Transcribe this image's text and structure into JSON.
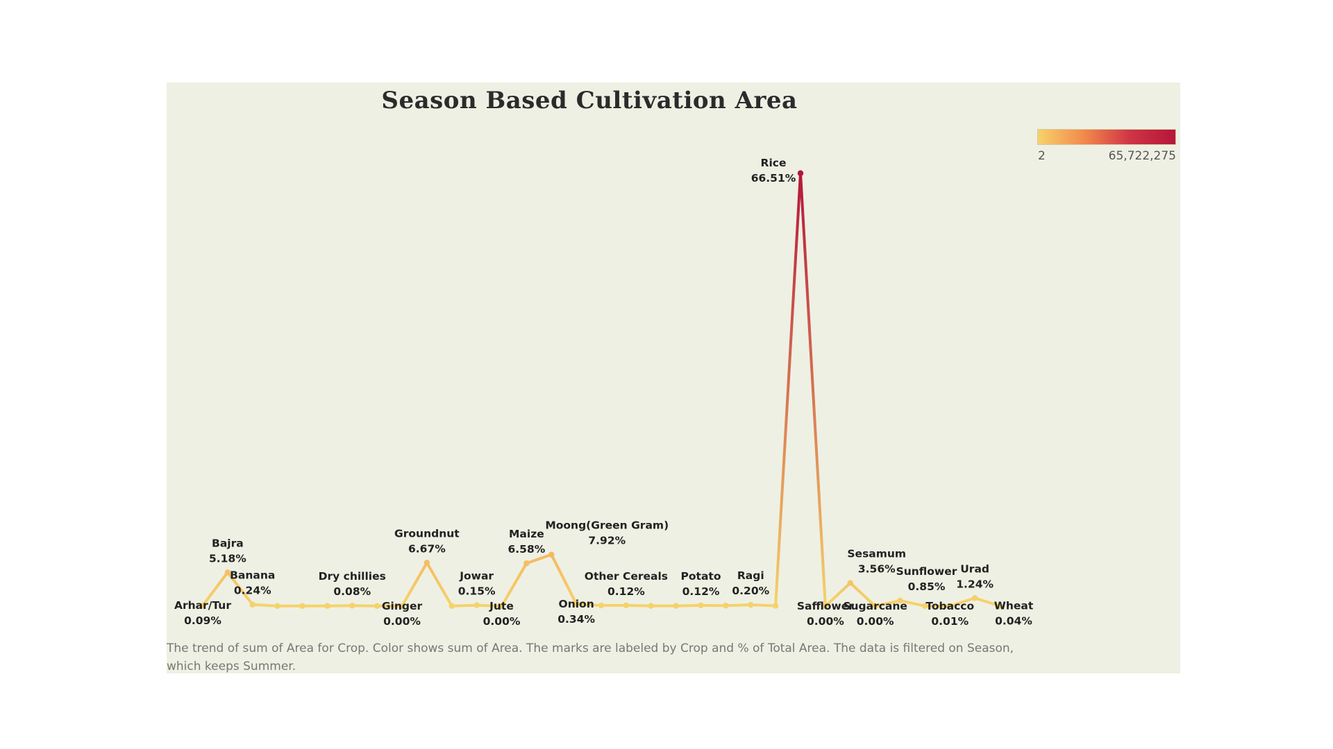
{
  "chart_data": {
    "type": "line",
    "title": "Season Based Cultivation Area",
    "color_legend": {
      "min_label": "2",
      "max_label": "65,722,275",
      "colors": [
        "#f6d26b",
        "#f28a4c",
        "#cf3546",
        "#b5163a"
      ]
    },
    "ylim": [
      0,
      70
    ],
    "points": [
      {
        "crop": "Arhar/Tur",
        "pct": 0.09,
        "pct_label": "0.09%",
        "show_label": true,
        "label_pos": "below"
      },
      {
        "crop": "Bajra",
        "pct": 5.18,
        "pct_label": "5.18%",
        "show_label": true,
        "label_pos": "above"
      },
      {
        "crop": "Banana",
        "pct": 0.24,
        "pct_label": "0.24%",
        "show_label": true,
        "label_pos": "above"
      },
      {
        "crop": "",
        "pct": 0.02,
        "pct_label": "",
        "show_label": false,
        "label_pos": "none"
      },
      {
        "crop": "",
        "pct": 0.02,
        "pct_label": "",
        "show_label": false,
        "label_pos": "none"
      },
      {
        "crop": "",
        "pct": 0.03,
        "pct_label": "",
        "show_label": false,
        "label_pos": "none"
      },
      {
        "crop": "Dry chillies",
        "pct": 0.08,
        "pct_label": "0.08%",
        "show_label": true,
        "label_pos": "above"
      },
      {
        "crop": "",
        "pct": 0.02,
        "pct_label": "",
        "show_label": false,
        "label_pos": "none"
      },
      {
        "crop": "Ginger",
        "pct": 0.0,
        "pct_label": "0.00%",
        "show_label": true,
        "label_pos": "below"
      },
      {
        "crop": "Groundnut",
        "pct": 6.67,
        "pct_label": "6.67%",
        "show_label": true,
        "label_pos": "above"
      },
      {
        "crop": "",
        "pct": 0.02,
        "pct_label": "",
        "show_label": false,
        "label_pos": "none"
      },
      {
        "crop": "Jowar",
        "pct": 0.15,
        "pct_label": "0.15%",
        "show_label": true,
        "label_pos": "above"
      },
      {
        "crop": "Jute",
        "pct": 0.0,
        "pct_label": "0.00%",
        "show_label": true,
        "label_pos": "below"
      },
      {
        "crop": "Maize",
        "pct": 6.58,
        "pct_label": "6.58%",
        "show_label": true,
        "label_pos": "above"
      },
      {
        "crop": "Moong(Green Gram)",
        "pct": 7.92,
        "pct_label": "7.92%",
        "show_label": true,
        "label_pos": "above-right"
      },
      {
        "crop": "Onion",
        "pct": 0.34,
        "pct_label": "0.34%",
        "show_label": true,
        "label_pos": "below"
      },
      {
        "crop": "",
        "pct": 0.1,
        "pct_label": "",
        "show_label": false,
        "label_pos": "none"
      },
      {
        "crop": "Other Cereals",
        "pct": 0.12,
        "pct_label": "0.12%",
        "show_label": true,
        "label_pos": "above"
      },
      {
        "crop": "",
        "pct": 0.04,
        "pct_label": "",
        "show_label": false,
        "label_pos": "none"
      },
      {
        "crop": "",
        "pct": 0.04,
        "pct_label": "",
        "show_label": false,
        "label_pos": "none"
      },
      {
        "crop": "Potato",
        "pct": 0.12,
        "pct_label": "0.12%",
        "show_label": true,
        "label_pos": "above"
      },
      {
        "crop": "",
        "pct": 0.08,
        "pct_label": "",
        "show_label": false,
        "label_pos": "none"
      },
      {
        "crop": "Ragi",
        "pct": 0.2,
        "pct_label": "0.20%",
        "show_label": true,
        "label_pos": "above"
      },
      {
        "crop": "",
        "pct": 0.05,
        "pct_label": "",
        "show_label": false,
        "label_pos": "none"
      },
      {
        "crop": "Rice",
        "pct": 66.51,
        "pct_label": "66.51%",
        "show_label": true,
        "label_pos": "above-left"
      },
      {
        "crop": "Safflower",
        "pct": 0.0,
        "pct_label": "0.00%",
        "show_label": true,
        "label_pos": "below"
      },
      {
        "crop": "Sesamum",
        "pct": 3.56,
        "pct_label": "3.56%",
        "show_label": true,
        "label_pos": "above-right"
      },
      {
        "crop": "Sugarcane",
        "pct": 0.0,
        "pct_label": "0.00%",
        "show_label": true,
        "label_pos": "below"
      },
      {
        "crop": "Sunflower",
        "pct": 0.85,
        "pct_label": "0.85%",
        "show_label": true,
        "label_pos": "above-right"
      },
      {
        "crop": "",
        "pct": 0.02,
        "pct_label": "",
        "show_label": false,
        "label_pos": "none"
      },
      {
        "crop": "Tobacco",
        "pct": 0.01,
        "pct_label": "0.01%",
        "show_label": true,
        "label_pos": "below"
      },
      {
        "crop": "Urad",
        "pct": 1.24,
        "pct_label": "1.24%",
        "show_label": true,
        "label_pos": "above"
      },
      {
        "crop": "Wheat",
        "pct": 0.04,
        "pct_label": "0.04%",
        "show_label": true,
        "label_pos": "below-right"
      }
    ]
  },
  "caption": "The trend of sum of Area for Crop.  Color shows sum of Area.  The marks are labeled by Crop and % of Total Area. The data is filtered on Season, which keeps Summer."
}
